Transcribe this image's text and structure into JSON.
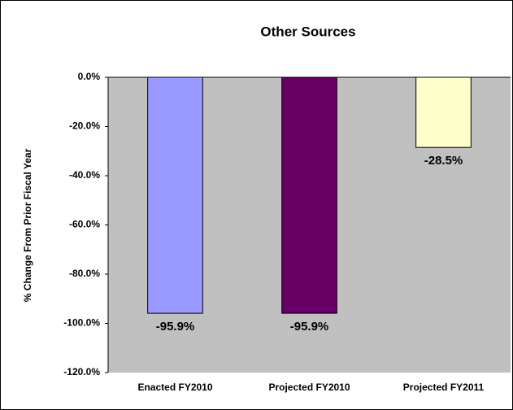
{
  "chart_data": {
    "type": "bar",
    "title": "Other Sources",
    "y_label": "% Change From Prior Fiscal Year",
    "categories": [
      "Enacted FY2010",
      "Projected FY2010",
      "Projected FY2011"
    ],
    "values": [
      -95.9,
      -95.9,
      -28.5
    ],
    "value_labels": [
      "-95.9%",
      "-95.9%",
      "-28.5%"
    ],
    "colors": [
      "#9999ff",
      "#660066",
      "#ffffcc"
    ],
    "ylim": [
      -120,
      0
    ],
    "yticks": [
      {
        "value": 0,
        "label": "0.0%"
      },
      {
        "value": -20,
        "label": "-20.0%"
      },
      {
        "value": -40,
        "label": "-40.0%"
      },
      {
        "value": -60,
        "label": "-60.0%"
      },
      {
        "value": -80,
        "label": "-80.0%"
      },
      {
        "value": -100,
        "label": "-100.0%"
      },
      {
        "value": -120,
        "label": "-120.0%"
      }
    ],
    "grid": false
  }
}
